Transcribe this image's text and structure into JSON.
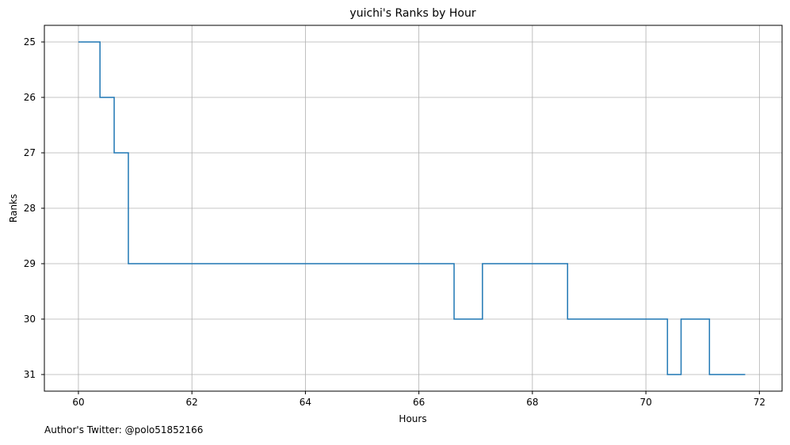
{
  "chart_data": {
    "type": "line",
    "step": "post",
    "title": "yuichi's Ranks by Hour",
    "xlabel": "Hours",
    "ylabel": "Ranks",
    "xlim": [
      59.4,
      72.4
    ],
    "ylim": [
      31.3,
      24.7
    ],
    "y_inverted": true,
    "grid": true,
    "xticks": [
      60,
      62,
      64,
      66,
      68,
      70,
      72
    ],
    "yticks": [
      25,
      26,
      27,
      28,
      29,
      30,
      31
    ],
    "line_color": "#1f77b4",
    "series": [
      {
        "x": [
          60.0,
          60.38,
          60.63,
          60.88,
          66.62,
          67.12,
          68.62,
          70.38,
          70.62,
          71.12,
          71.75
        ],
        "y": [
          25,
          26,
          27,
          29,
          30,
          29,
          30,
          31,
          30,
          31,
          31
        ]
      }
    ]
  },
  "footer": {
    "text": "Author's Twitter: @polo51852166"
  }
}
